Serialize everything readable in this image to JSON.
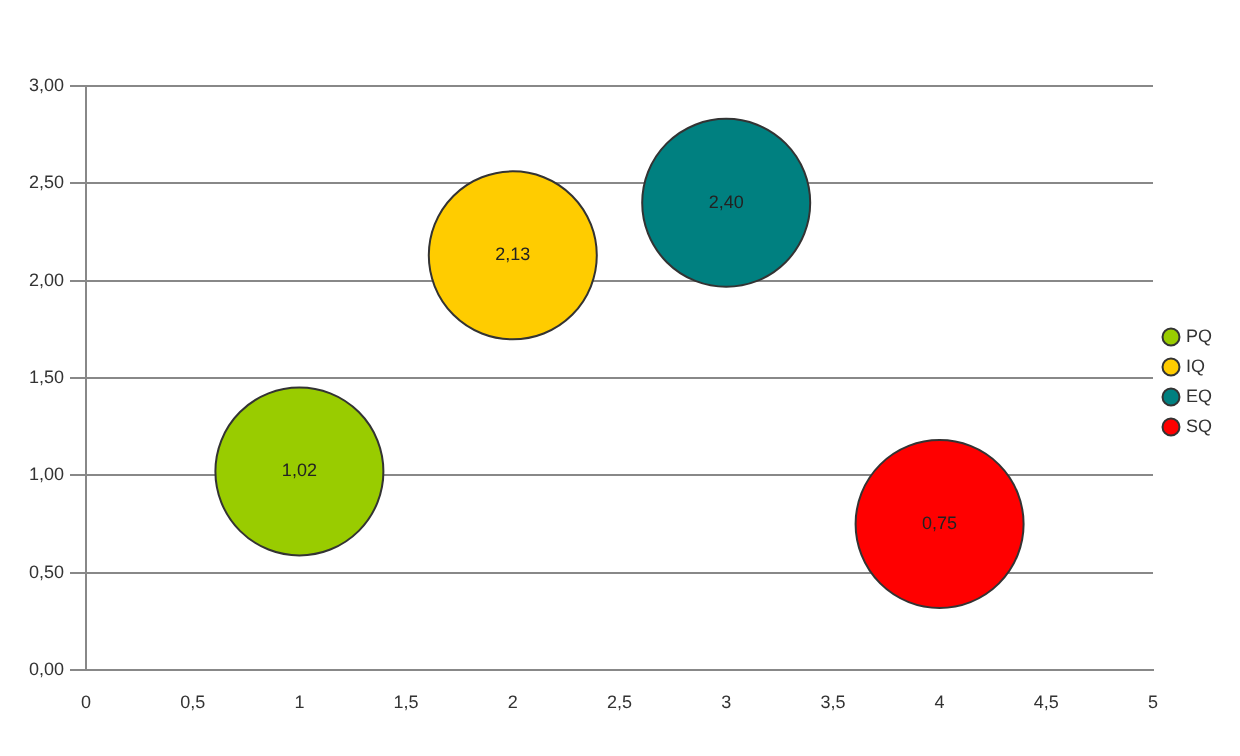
{
  "chart_data": {
    "type": "bubble",
    "xlim": [
      0,
      5
    ],
    "ylim": [
      0,
      3
    ],
    "xticks": [
      0,
      {
        "value": 0.5,
        "label": "0,5"
      },
      1,
      {
        "value": 1.5,
        "label": "1,5"
      },
      2,
      {
        "value": 2.5,
        "label": "2,5"
      },
      3,
      {
        "value": 3.5,
        "label": "3,5"
      },
      4,
      {
        "value": 4.5,
        "label": "4,5"
      },
      5
    ],
    "yticks": [
      {
        "value": 0,
        "label": "0,00"
      },
      {
        "value": 0.5,
        "label": "0,50"
      },
      {
        "value": 1,
        "label": "1,00"
      },
      {
        "value": 1.5,
        "label": "1,50"
      },
      {
        "value": 2,
        "label": "2,00"
      },
      {
        "value": 2.5,
        "label": "2,50"
      },
      {
        "value": 3,
        "label": "3,00"
      }
    ],
    "grid": "y",
    "legend": "right",
    "series": [
      {
        "name": "PQ",
        "color": "#99cc00",
        "x": [
          1
        ],
        "values": [
          1.02
        ],
        "sizes": [
          1
        ],
        "value_labels": [
          "1,02"
        ]
      },
      {
        "name": "IQ",
        "color": "#ffcc00",
        "x": [
          2
        ],
        "values": [
          2.13
        ],
        "sizes": [
          1
        ],
        "value_labels": [
          "2,13"
        ]
      },
      {
        "name": "EQ",
        "color": "#008080",
        "x": [
          3
        ],
        "values": [
          2.4
        ],
        "sizes": [
          1
        ],
        "value_labels": [
          "2,40"
        ]
      },
      {
        "name": "SQ",
        "color": "#ff0000",
        "x": [
          4
        ],
        "values": [
          0.75
        ],
        "sizes": [
          1
        ],
        "value_labels": [
          "0,75"
        ]
      }
    ]
  }
}
